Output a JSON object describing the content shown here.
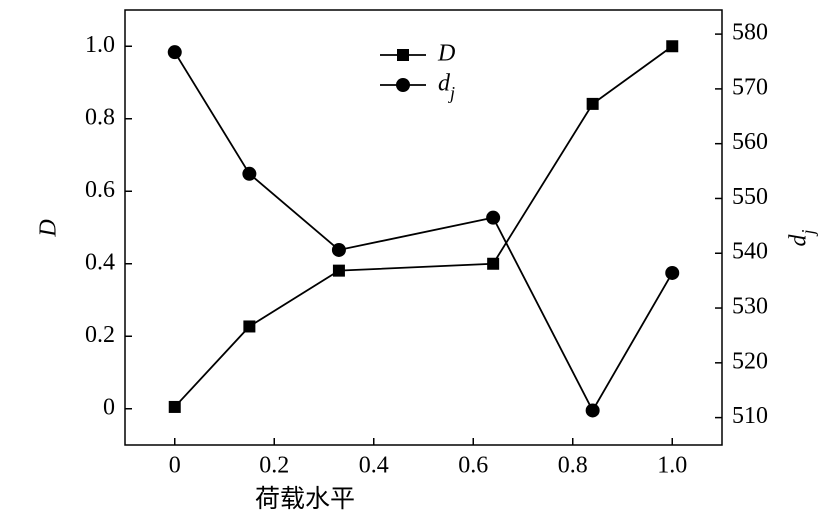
{
  "chart_data": {
    "type": "line",
    "xlabel": "荷载水平",
    "ylabel": "D",
    "y2label": "dj",
    "xlim": [
      -0.1,
      1.1
    ],
    "xticks": [
      0,
      0.2,
      0.4,
      0.6,
      0.8,
      {
        "value": 1.0,
        "label": "1.0"
      }
    ],
    "ylim": [
      -0.1,
      1.1
    ],
    "yticks": [
      0,
      0.2,
      0.4,
      0.6,
      0.8,
      {
        "value": 1.0,
        "label": "1.0"
      }
    ],
    "y2lim": [
      505,
      584.4
    ],
    "y2ticks": [
      510,
      520,
      530,
      540,
      550,
      560,
      570,
      580
    ],
    "legend": "upper center",
    "series": [
      {
        "name": "D",
        "color": "#000000",
        "marker": "square",
        "x": [
          0,
          0.15,
          0.33,
          0.64,
          0.84,
          1.0
        ],
        "values": [
          0.005,
          0.227,
          0.381,
          0.4,
          0.841,
          1.0
        ]
      },
      {
        "name": "dj",
        "color": "#000000",
        "marker": "circle",
        "axis": "y2",
        "x": [
          0,
          0.15,
          0.33,
          0.64,
          0.84,
          1.0
        ],
        "values": [
          576.7,
          554.5,
          540.6,
          546.5,
          511.3,
          536.4
        ]
      }
    ]
  }
}
